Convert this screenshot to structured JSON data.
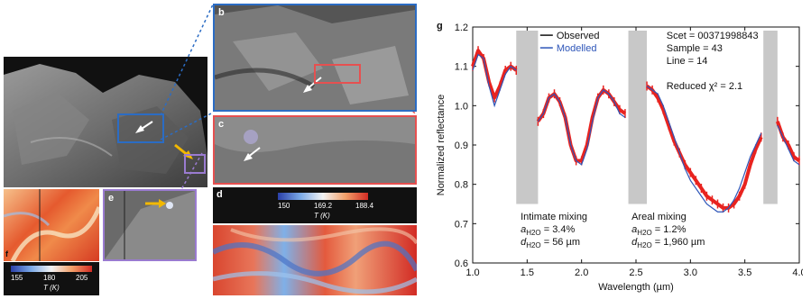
{
  "panels": {
    "a": {
      "label": ""
    },
    "b": {
      "label": "b"
    },
    "c": {
      "label": "c"
    },
    "d": {
      "label": "d",
      "colorbar": {
        "ticks": [
          "150",
          "169.2",
          "188.4"
        ],
        "unit": "T (K)"
      }
    },
    "e": {
      "label": "e"
    },
    "f": {
      "label": "f",
      "colorbar": {
        "ticks": [
          "155",
          "180",
          "205"
        ],
        "unit": "T (K)"
      }
    }
  },
  "colors": {
    "blue_box": "#2b6cc4",
    "red_box": "#e65050",
    "purple_box": "#9a7bd0",
    "arrow_yellow": "#f2b800",
    "observed_red": "#e8231f",
    "modelled_blue": "#2d55b8",
    "band_gray": "#c8c8c8"
  },
  "chart_data": {
    "type": "line",
    "panel_label": "g",
    "xlabel": "Wavelength (µm)",
    "ylabel": "Normalized reflectance",
    "xlim": [
      1.0,
      4.0
    ],
    "ylim": [
      0.6,
      1.2
    ],
    "xticks": [
      "1.0",
      "1.5",
      "2.0",
      "2.5",
      "3.0",
      "3.5",
      "4.0"
    ],
    "yticks": [
      "0.6",
      "0.7",
      "0.8",
      "0.9",
      "1.0",
      "1.1",
      "1.2"
    ],
    "legend": [
      "Observed",
      "Modelled"
    ],
    "info_lines": [
      "Scet = 00371998843",
      "Sample = 43",
      "Line = 14",
      "",
      "Reduced χ² = 2.1"
    ],
    "excluded_bands": [
      [
        1.4,
        1.6
      ],
      [
        2.43,
        2.6
      ],
      [
        3.67,
        3.8
      ]
    ],
    "annotations": {
      "intimate": {
        "title": "Intimate mixing",
        "a": "a",
        "a_sub": "H2O",
        "a_val": " = 3.4%",
        "d": "d",
        "d_sub": "H2O",
        "d_val": " = 56 µm"
      },
      "areal": {
        "title": "Areal mixing",
        "a": "a",
        "a_sub": "H2O",
        "a_val": " = 1.2%",
        "d": "d",
        "d_sub": "H2O",
        "d_val": " = 1,960 µm"
      }
    },
    "series": [
      {
        "name": "Observed",
        "x": [
          1.0,
          1.05,
          1.1,
          1.15,
          1.2,
          1.25,
          1.3,
          1.35,
          1.4,
          1.6,
          1.65,
          1.7,
          1.75,
          1.8,
          1.85,
          1.9,
          1.95,
          2.0,
          2.05,
          2.1,
          2.15,
          2.2,
          2.25,
          2.3,
          2.35,
          2.4,
          2.6,
          2.65,
          2.7,
          2.75,
          2.8,
          2.85,
          2.9,
          2.95,
          3.0,
          3.05,
          3.1,
          3.15,
          3.2,
          3.25,
          3.3,
          3.35,
          3.4,
          3.45,
          3.5,
          3.55,
          3.6,
          3.65,
          3.8,
          3.85,
          3.9,
          3.95,
          4.0
        ],
        "y": [
          1.1,
          1.14,
          1.12,
          1.06,
          1.02,
          1.05,
          1.09,
          1.1,
          1.09,
          0.96,
          0.98,
          1.02,
          1.03,
          1.01,
          0.97,
          0.9,
          0.86,
          0.86,
          0.9,
          0.97,
          1.02,
          1.04,
          1.03,
          1.01,
          0.99,
          0.98,
          1.05,
          1.04,
          1.02,
          0.99,
          0.95,
          0.91,
          0.88,
          0.85,
          0.83,
          0.81,
          0.79,
          0.77,
          0.76,
          0.75,
          0.74,
          0.74,
          0.75,
          0.77,
          0.8,
          0.85,
          0.89,
          0.92,
          0.96,
          0.92,
          0.9,
          0.87,
          0.86
        ]
      },
      {
        "name": "Modelled",
        "x": [
          1.0,
          1.05,
          1.1,
          1.15,
          1.2,
          1.25,
          1.3,
          1.35,
          1.4,
          1.6,
          1.65,
          1.7,
          1.75,
          1.8,
          1.85,
          1.9,
          1.95,
          2.0,
          2.05,
          2.1,
          2.15,
          2.2,
          2.25,
          2.3,
          2.35,
          2.4,
          2.6,
          2.65,
          2.7,
          2.75,
          2.8,
          2.85,
          2.9,
          2.95,
          3.0,
          3.05,
          3.1,
          3.15,
          3.2,
          3.25,
          3.3,
          3.35,
          3.4,
          3.45,
          3.5,
          3.55,
          3.6,
          3.65,
          3.8,
          3.85,
          3.9,
          3.95,
          4.0
        ],
        "y": [
          1.09,
          1.13,
          1.12,
          1.05,
          1.0,
          1.04,
          1.08,
          1.1,
          1.09,
          0.96,
          0.98,
          1.02,
          1.03,
          1.01,
          0.97,
          0.9,
          0.86,
          0.85,
          0.89,
          0.96,
          1.02,
          1.04,
          1.03,
          1.01,
          0.98,
          0.97,
          1.05,
          1.04,
          1.03,
          1.0,
          0.96,
          0.92,
          0.88,
          0.84,
          0.81,
          0.79,
          0.77,
          0.75,
          0.74,
          0.73,
          0.73,
          0.74,
          0.76,
          0.79,
          0.83,
          0.87,
          0.9,
          0.93,
          0.95,
          0.92,
          0.89,
          0.86,
          0.85
        ]
      }
    ]
  }
}
